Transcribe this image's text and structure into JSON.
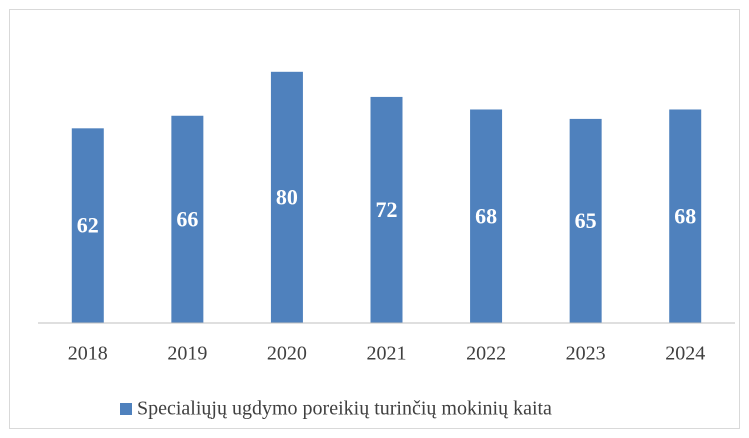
{
  "chart_data": {
    "type": "bar",
    "categories": [
      "2018",
      "2019",
      "2020",
      "2021",
      "2022",
      "2023",
      "2024"
    ],
    "series": [
      {
        "name": "Specialiųjų ugdymo poreikių turinčių mokinių kaita",
        "color": "#4f81bd",
        "values": [
          62,
          66,
          80,
          72,
          68,
          65,
          68
        ]
      }
    ],
    "ylim": [
      0,
      100
    ],
    "legend": "bottom"
  }
}
